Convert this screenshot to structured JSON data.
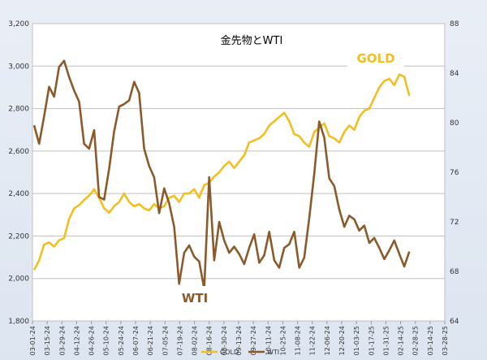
{
  "chart_data": {
    "type": "line",
    "title": "金先物とWTI",
    "xlabel": "",
    "ylabel_left": "",
    "ylabel_right": "",
    "ylim_left": [
      1800,
      3200
    ],
    "ylim_right": [
      64,
      88
    ],
    "yticks_left": [
      "1,800",
      "2,000",
      "2,200",
      "2,400",
      "2,600",
      "2,800",
      "3,000",
      "3,200"
    ],
    "yticks_right": [
      "64",
      "68",
      "72",
      "76",
      "80",
      "84",
      "88"
    ],
    "x_ticks": [
      "03-01-24",
      "03-15-24",
      "03-29-24",
      "04-12-24",
      "04-26-24",
      "05-10-24",
      "05-24-24",
      "06-07-24",
      "06-21-24",
      "07-05-24",
      "07-19-24",
      "08-02-24",
      "08-16-24",
      "08-30-24",
      "09-13-24",
      "09-27-24",
      "10-11-24",
      "10-25-24",
      "11-08-24",
      "11-22-24",
      "12-06-24",
      "12-20-24",
      "01-03-25",
      "01-17-25",
      "01-31-25",
      "02-14-25",
      "02-28-25",
      "03-14-25",
      "03-28-25"
    ],
    "grid": true,
    "legend_position": "bottom",
    "colors": {
      "gold": "#f0bf21",
      "wti": "#8b5a2b",
      "grid": "#bfbfbf"
    },
    "annotations": {
      "gold_label": "GOLD",
      "wti_label": "WTI"
    },
    "series": [
      {
        "name": "GOLD",
        "axis": "left",
        "values": [
          2040,
          2085,
          2160,
          2170,
          2150,
          2180,
          2190,
          2280,
          2330,
          2345,
          2370,
          2390,
          2420,
          2380,
          2330,
          2310,
          2340,
          2360,
          2400,
          2360,
          2340,
          2350,
          2330,
          2320,
          2350,
          2330,
          2340,
          2380,
          2390,
          2360,
          2400,
          2400,
          2420,
          2380,
          2440,
          2450,
          2480,
          2500,
          2530,
          2550,
          2520,
          2550,
          2580,
          2640,
          2650,
          2660,
          2680,
          2720,
          2740,
          2760,
          2780,
          2740,
          2680,
          2670,
          2640,
          2620,
          2690,
          2710,
          2730,
          2670,
          2660,
          2640,
          2690,
          2720,
          2700,
          2760,
          2790,
          2800,
          2850,
          2900,
          2930,
          2940,
          2910,
          2960,
          2950,
          2860
        ]
      },
      {
        "name": "WTI",
        "axis": "right",
        "values": [
          79.8,
          78.3,
          80.5,
          82.9,
          82.1,
          84.5,
          85.0,
          83.7,
          82.6,
          81.7,
          78.3,
          77.9,
          79.4,
          74.0,
          73.8,
          76.3,
          79.3,
          81.3,
          81.5,
          81.8,
          83.3,
          82.4,
          77.9,
          76.5,
          75.6,
          72.7,
          74.7,
          73.5,
          71.6,
          67.0,
          69.5,
          70.1,
          69.2,
          68.8,
          66.6,
          75.6,
          68.9,
          72.0,
          70.5,
          69.5,
          70.0,
          69.4,
          68.6,
          69.9,
          71.0,
          68.7,
          69.3,
          71.2,
          68.9,
          68.3,
          69.9,
          70.2,
          71.2,
          68.3,
          69.1,
          72.3,
          75.9,
          80.1,
          78.8,
          75.5,
          74.9,
          73.0,
          71.6,
          72.5,
          72.2,
          71.3,
          71.7,
          70.3,
          70.7,
          69.9,
          69.0,
          69.7,
          70.5,
          69.4,
          68.4,
          69.6
        ]
      }
    ]
  }
}
